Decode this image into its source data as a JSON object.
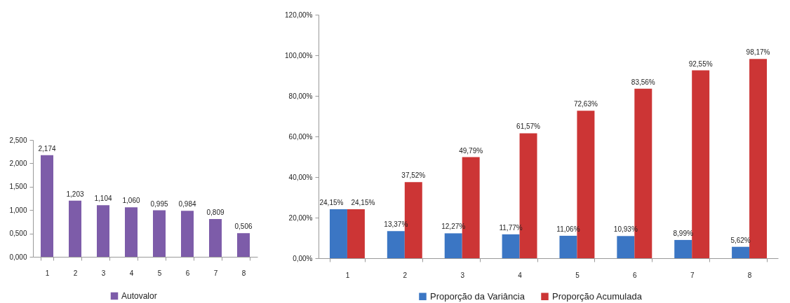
{
  "chart_data": [
    {
      "type": "bar",
      "categories": [
        "1",
        "2",
        "3",
        "4",
        "5",
        "6",
        "7",
        "8"
      ],
      "series": [
        {
          "name": "Autovalor",
          "color": "#7d5ca9",
          "values": [
            2.174,
            1.203,
            1.104,
            1.06,
            0.995,
            0.984,
            0.809,
            0.506
          ],
          "value_labels": [
            "2,174",
            "1,203",
            "1,104",
            "1,060",
            "0,995",
            "0,984",
            "0,809",
            "0,506"
          ]
        }
      ],
      "ylim": [
        0,
        2.5
      ],
      "yticks": [
        {
          "value": 0,
          "label": "0,000"
        },
        {
          "value": 0.5,
          "label": "0,500"
        },
        {
          "value": 1,
          "label": "1,000"
        },
        {
          "value": 1.5,
          "label": "1,500"
        },
        {
          "value": 2,
          "label": "2,000"
        },
        {
          "value": 2.5,
          "label": "2,500"
        }
      ],
      "legend": "bottom",
      "grid": false
    },
    {
      "type": "bar",
      "categories": [
        "1",
        "2",
        "3",
        "4",
        "5",
        "6",
        "7",
        "8"
      ],
      "series": [
        {
          "name": "Proporção da Variância",
          "color": "#3b76c4",
          "values": [
            24.15,
            13.37,
            12.27,
            11.77,
            11.06,
            10.93,
            8.99,
            5.62
          ],
          "value_labels": [
            "24,15%",
            "13,37%",
            "12,27%",
            "11,77%",
            "11,06%",
            "10,93%",
            "8,99%",
            "5,62%"
          ]
        },
        {
          "name": "Proporção Acumulada",
          "color": "#cc3535",
          "values": [
            24.15,
            37.52,
            49.79,
            61.57,
            72.63,
            83.56,
            92.55,
            98.17
          ],
          "value_labels": [
            "24,15%",
            "37,52%",
            "49,79%",
            "61,57%",
            "72,63%",
            "83,56%",
            "92,55%",
            "98,17%"
          ]
        }
      ],
      "ylim": [
        0,
        120
      ],
      "yticks": [
        {
          "value": 0,
          "label": "0,00%"
        },
        {
          "value": 20,
          "label": "20,00%"
        },
        {
          "value": 40,
          "label": "40,00%"
        },
        {
          "value": 60,
          "label": "60,00%"
        },
        {
          "value": 80,
          "label": "80,00%"
        },
        {
          "value": 100,
          "label": "100,00%"
        },
        {
          "value": 120,
          "label": "120,00%"
        }
      ],
      "legend": "bottom",
      "grid": false
    }
  ]
}
